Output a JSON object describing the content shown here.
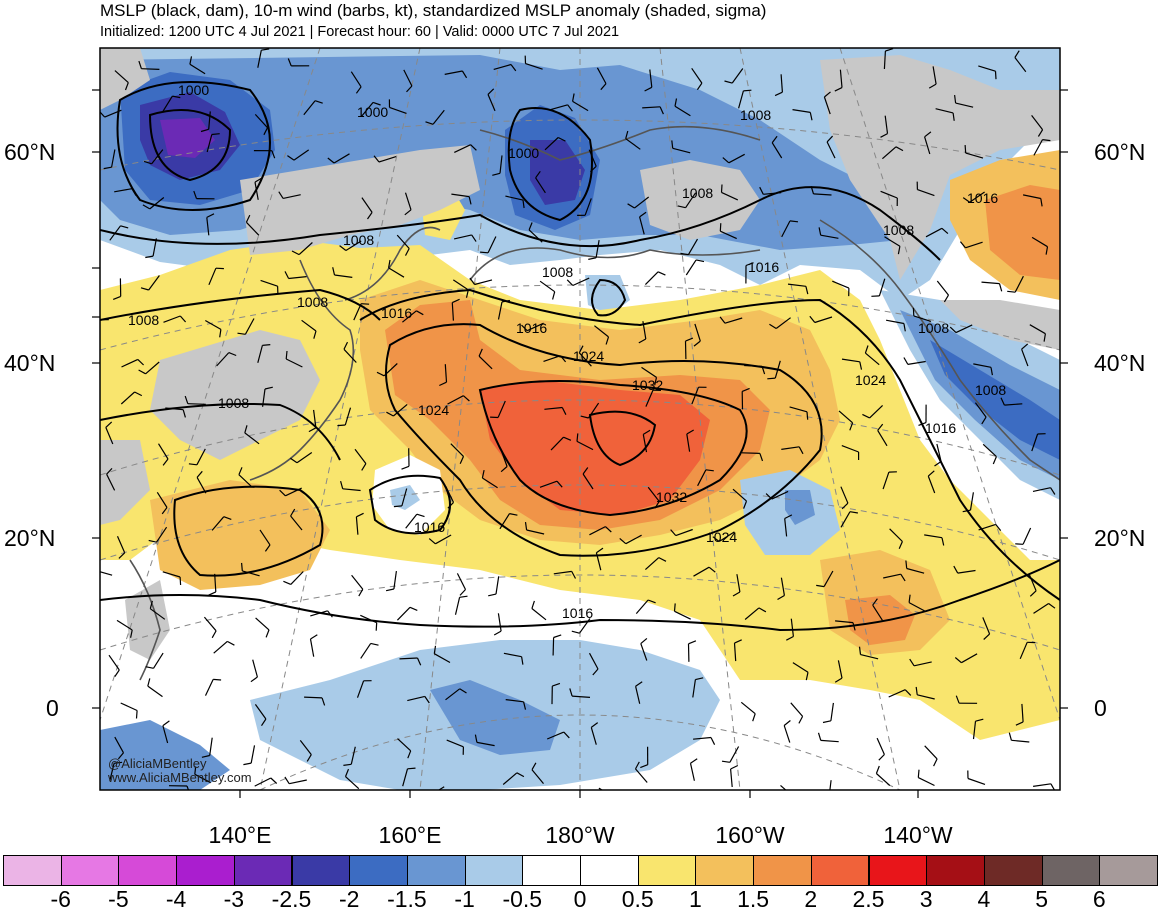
{
  "header": {
    "title": "MSLP (black, dam), 10-m wind (barbs, kt), standardized MSLP anomaly (shaded, sigma)",
    "subtitle": "Initialized: 1200 UTC 4 Jul 2021 | Forecast hour: 60 | Valid: 0000 UTC 7 Jul 2021"
  },
  "axes": {
    "lat_labels": [
      "60°N",
      "40°N",
      "20°N",
      "0"
    ],
    "lon_labels": [
      "140°E",
      "160°E",
      "180°W",
      "160°W",
      "140°W"
    ]
  },
  "contour_labels": [
    "1000",
    "1000",
    "1000",
    "1008",
    "1008",
    "1008",
    "1008",
    "1008",
    "1008",
    "1008",
    "1008",
    "1008",
    "1008",
    "1016",
    "1016",
    "1016",
    "1016",
    "1016",
    "1016",
    "1024",
    "1024",
    "1024",
    "1024",
    "1032",
    "1032"
  ],
  "colorbar": {
    "labels": [
      "-6",
      "-5",
      "-4",
      "-3",
      "-2.5",
      "-2",
      "-1.5",
      "-1",
      "-0.5",
      "0",
      "0.5",
      "1",
      "1.5",
      "2",
      "2.5",
      "3",
      "4",
      "5",
      "6"
    ],
    "colors": [
      "#ebb4e6",
      "#e678e4",
      "#d64ad8",
      "#aa1ecf",
      "#6b2ab5",
      "#3a3aa6",
      "#3c6cc2",
      "#6996d2",
      "#a9cbe8",
      "#ffffff",
      "#ffffff",
      "#f9e56e",
      "#f3c05c",
      "#f09448",
      "#f0623a",
      "#e8151a",
      "#a50f15",
      "#6e2a26",
      "#6e6464",
      "#a69a9a"
    ]
  },
  "credits": {
    "handle": "@AliciaMBentley",
    "website": "www.AliciaMBentley.com"
  }
}
